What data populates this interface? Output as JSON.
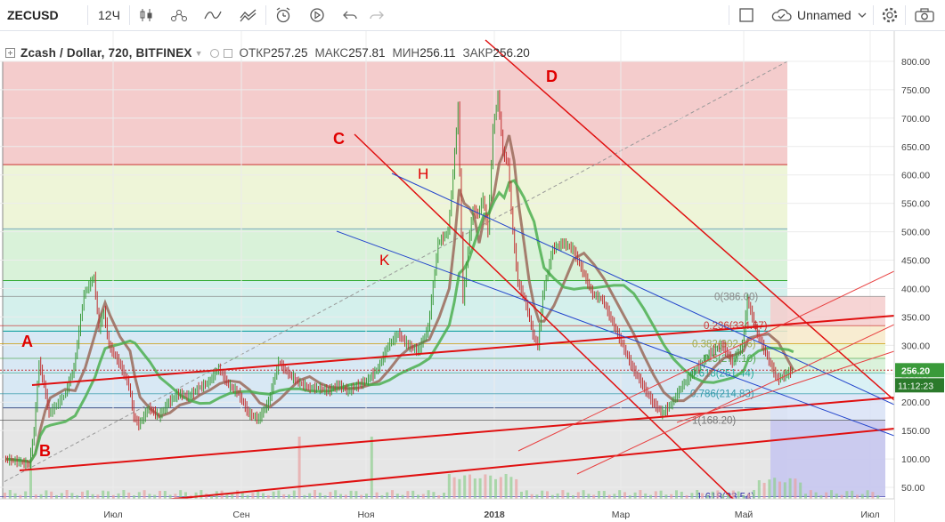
{
  "toolbar": {
    "symbol": "ZECUSD",
    "interval": "12Ч",
    "layout_name": "Unnamed"
  },
  "legend": {
    "pair": "Zcash / Dollar, 720, BITFINEX",
    "open_label": "ОТКР",
    "open": "257.25",
    "high_label": "МАКС",
    "high": "257.81",
    "low_label": "МИН",
    "low": "256.11",
    "close_label": "ЗАКР",
    "close": "256.20"
  },
  "price_badge": "256.20",
  "time_badge": "11:12:23",
  "chart_data": {
    "type": "line",
    "title": "Zcash / Dollar, 720, BITFINEX",
    "ylim": [
      35,
      830
    ],
    "y_ticks": [
      50,
      100,
      150,
      200,
      250,
      300,
      350,
      400,
      450,
      500,
      550,
      600,
      650,
      700,
      750,
      800
    ],
    "y_tick_labels": [
      "50.00",
      "100.00",
      "150.00",
      "200.00",
      "250.00",
      "300.00",
      "350.00",
      "400.00",
      "450.00",
      "500.00",
      "550.00",
      "600.00",
      "650.00",
      "700.00",
      "750.00",
      "800.00"
    ],
    "x_ticks": [
      "Июл",
      "Сен",
      "Ноя",
      "2018",
      "Мар",
      "Май",
      "Июл"
    ],
    "series": [
      {
        "values": [
          [
            0,
            100
          ],
          [
            3,
            95
          ],
          [
            5,
            90
          ],
          [
            6,
            150
          ],
          [
            7,
            270
          ],
          [
            8,
            230
          ],
          [
            9,
            180
          ],
          [
            12,
            210
          ],
          [
            14,
            260
          ],
          [
            16,
            390
          ],
          [
            18,
            420
          ],
          [
            19,
            330
          ],
          [
            20,
            360
          ],
          [
            21,
            300
          ],
          [
            23,
            270
          ],
          [
            25,
            230
          ],
          [
            26,
            175
          ],
          [
            27,
            160
          ],
          [
            29,
            190
          ],
          [
            31,
            175
          ],
          [
            33,
            200
          ],
          [
            35,
            215
          ],
          [
            37,
            210
          ],
          [
            39,
            225
          ],
          [
            41,
            235
          ],
          [
            43,
            260
          ],
          [
            45,
            230
          ],
          [
            47,
            215
          ],
          [
            49,
            180
          ],
          [
            51,
            170
          ],
          [
            53,
            200
          ],
          [
            55,
            270
          ],
          [
            57,
            250
          ],
          [
            59,
            235
          ],
          [
            61,
            225
          ],
          [
            63,
            225
          ],
          [
            65,
            220
          ],
          [
            67,
            230
          ],
          [
            69,
            220
          ],
          [
            71,
            230
          ],
          [
            73,
            240
          ],
          [
            75,
            260
          ],
          [
            77,
            300
          ],
          [
            79,
            320
          ],
          [
            81,
            300
          ],
          [
            83,
            290
          ],
          [
            85,
            330
          ],
          [
            87,
            480
          ],
          [
            89,
            500
          ],
          [
            90,
            600
          ],
          [
            91,
            720
          ],
          [
            92,
            380
          ],
          [
            93,
            470
          ],
          [
            94,
            540
          ],
          [
            95,
            530
          ],
          [
            96,
            560
          ],
          [
            97,
            500
          ],
          [
            98,
            680
          ],
          [
            99,
            740
          ],
          [
            100,
            640
          ],
          [
            101,
            620
          ],
          [
            102,
            500
          ],
          [
            103,
            410
          ],
          [
            104,
            390
          ],
          [
            105,
            360
          ],
          [
            106,
            320
          ],
          [
            107,
            300
          ],
          [
            108,
            390
          ],
          [
            110,
            470
          ],
          [
            112,
            480
          ],
          [
            114,
            470
          ],
          [
            116,
            430
          ],
          [
            118,
            390
          ],
          [
            120,
            380
          ],
          [
            122,
            340
          ],
          [
            124,
            300
          ],
          [
            126,
            260
          ],
          [
            128,
            230
          ],
          [
            130,
            200
          ],
          [
            132,
            180
          ],
          [
            134,
            200
          ],
          [
            136,
            230
          ],
          [
            138,
            250
          ],
          [
            140,
            270
          ],
          [
            142,
            290
          ],
          [
            144,
            300
          ],
          [
            146,
            270
          ],
          [
            148,
            300
          ],
          [
            149,
            380
          ],
          [
            151,
            320
          ],
          [
            153,
            280
          ],
          [
            155,
            240
          ],
          [
            157,
            250
          ],
          [
            158,
            256
          ]
        ]
      }
    ],
    "fib_retracement": [
      {
        "level": "0",
        "price": 386.0
      },
      {
        "level": "0.236",
        "price": 334.67
      },
      {
        "level": "0.382",
        "price": 302.86
      },
      {
        "level": "0.5",
        "price": 277.1
      },
      {
        "level": "0.618",
        "price": 251.44
      },
      {
        "level": "0.786",
        "price": 214.83
      },
      {
        "level": "1",
        "price": 168.2
      },
      {
        "level": "1.618",
        "price": 33.54
      }
    ],
    "fib_labels": [
      "0(386.00)",
      "0.236(334.67)",
      "0.382(302.86)",
      "0.5(277.10)",
      "0.618(251.44)",
      "0.786(214.83)",
      "1(168.20)",
      "1.618(33.54)"
    ],
    "annotations": [
      "A",
      "B",
      "C",
      "D",
      "H",
      "K"
    ]
  }
}
